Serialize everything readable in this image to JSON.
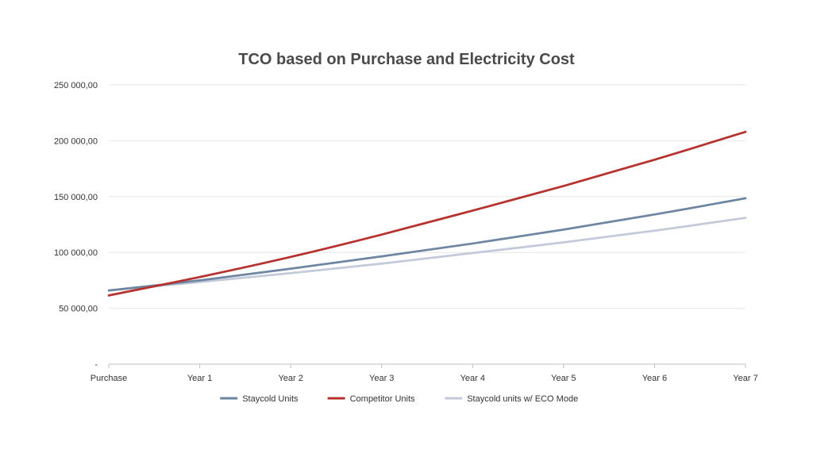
{
  "chart_data": {
    "type": "line",
    "title": "TCO based on Purchase and Electricity Cost",
    "categories": [
      "Purchase",
      "Year 1",
      "Year 2",
      "Year 3",
      "Year 4",
      "Year 5",
      "Year 6",
      "Year 7"
    ],
    "y_tick_values": [
      0,
      50000,
      100000,
      150000,
      200000,
      250000
    ],
    "y_tick_labels": [
      "-",
      "50 000,00",
      "100 000,00",
      "150 000,00",
      "200 000,00",
      "250 000,00"
    ],
    "ylim": [
      0,
      250000
    ],
    "grid": true,
    "legend_position": "bottom",
    "series": [
      {
        "name": "Staycold Units",
        "color": "#6f86a3",
        "values": [
          66000,
          75000,
          85500,
          96500,
          108000,
          120500,
          134000,
          148500
        ]
      },
      {
        "name": "Competitor Units",
        "color": "#b5322e",
        "values": [
          61500,
          78000,
          96000,
          116000,
          137500,
          159500,
          183000,
          208000
        ]
      },
      {
        "name": "Staycold units w/ ECO Mode",
        "color": "#c3cada",
        "values": [
          66000,
          73500,
          81500,
          90000,
          99500,
          109000,
          119500,
          131000
        ]
      }
    ]
  }
}
